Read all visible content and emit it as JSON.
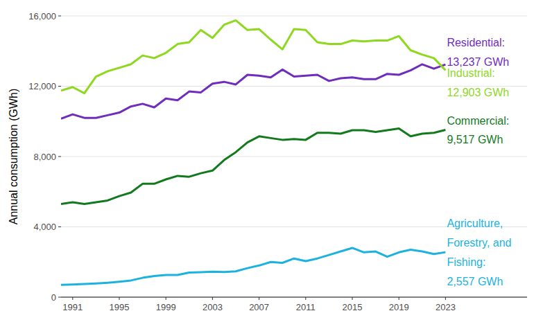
{
  "chart_data": {
    "type": "line",
    "y_label": "Annual consumption (GWh)",
    "x": [
      1990,
      1991,
      1992,
      1993,
      1994,
      1995,
      1996,
      1997,
      1998,
      1999,
      2000,
      2001,
      2002,
      2003,
      2004,
      2005,
      2006,
      2007,
      2008,
      2009,
      2010,
      2011,
      2012,
      2013,
      2014,
      2015,
      2016,
      2017,
      2018,
      2019,
      2020,
      2021,
      2022,
      2023
    ],
    "xlim": [
      1990,
      2030
    ],
    "xticks": [
      1991,
      1995,
      1999,
      2003,
      2007,
      2011,
      2015,
      2019,
      2023
    ],
    "ylim": [
      0,
      16000
    ],
    "yticks": [
      {
        "value": 0,
        "label": "0"
      },
      {
        "value": 4000,
        "label": "4,000"
      },
      {
        "value": 8000,
        "label": "8,000"
      },
      {
        "value": 12000,
        "label": "12,000"
      },
      {
        "value": 16000,
        "label": "16,000"
      }
    ],
    "grid": true,
    "series": [
      {
        "name": "Residential:",
        "color": "#6f2dbd",
        "values": [
          10150,
          10400,
          10200,
          10200,
          10350,
          10500,
          10850,
          11000,
          10800,
          11300,
          11200,
          11700,
          11650,
          12150,
          12250,
          12100,
          12650,
          12600,
          12500,
          12950,
          12550,
          12600,
          12650,
          12300,
          12450,
          12500,
          12400,
          12400,
          12700,
          12650,
          12900,
          13250,
          13000,
          13237
        ],
        "value_labels": [
          null,
          null,
          null,
          null,
          null,
          null,
          null,
          null,
          null,
          null,
          null,
          null,
          null,
          null,
          null,
          null,
          null,
          null,
          null,
          null,
          null,
          null,
          null,
          null,
          null,
          null,
          null,
          null,
          null,
          null,
          null,
          null,
          null,
          "13,237 GWh"
        ]
      },
      {
        "name": "Industrial:",
        "color": "#8ed81e",
        "values": [
          11750,
          11950,
          11600,
          12550,
          12850,
          13050,
          13250,
          13750,
          13600,
          13900,
          14400,
          14500,
          15200,
          14750,
          15500,
          15750,
          15200,
          15250,
          14650,
          14100,
          15250,
          15200,
          14500,
          14400,
          14400,
          14600,
          14550,
          14600,
          14600,
          14850,
          14050,
          13800,
          13600,
          12903
        ],
        "value_labels": [
          null,
          null,
          null,
          null,
          null,
          null,
          null,
          null,
          null,
          null,
          null,
          null,
          null,
          null,
          null,
          null,
          null,
          null,
          null,
          null,
          null,
          null,
          null,
          null,
          null,
          null,
          null,
          null,
          null,
          null,
          null,
          null,
          null,
          "12,903 GWh"
        ]
      },
      {
        "name": "Commercial:",
        "color": "#127a1d",
        "values": [
          5300,
          5400,
          5300,
          5400,
          5500,
          5750,
          5950,
          6450,
          6450,
          6700,
          6900,
          6850,
          7050,
          7200,
          7800,
          8250,
          8800,
          9150,
          9050,
          8950,
          9000,
          8950,
          9350,
          9350,
          9300,
          9500,
          9500,
          9400,
          9500,
          9600,
          9150,
          9300,
          9350,
          9517
        ],
        "value_labels": [
          null,
          null,
          null,
          null,
          null,
          null,
          null,
          null,
          null,
          null,
          null,
          null,
          null,
          null,
          null,
          null,
          null,
          null,
          null,
          null,
          null,
          null,
          null,
          null,
          null,
          null,
          null,
          null,
          null,
          null,
          null,
          null,
          null,
          "9,517 GWh"
        ]
      },
      {
        "name": "Agriculture, Forestry, and Fishing:",
        "color": "#1bb2e0",
        "values": [
          700,
          720,
          750,
          780,
          820,
          880,
          950,
          1100,
          1200,
          1260,
          1260,
          1400,
          1420,
          1450,
          1430,
          1470,
          1650,
          1800,
          2000,
          1950,
          2200,
          2050,
          2200,
          2400,
          2600,
          2800,
          2550,
          2600,
          2300,
          2550,
          2700,
          2600,
          2450,
          2557
        ],
        "value_labels": [
          null,
          null,
          null,
          null,
          null,
          null,
          null,
          null,
          null,
          null,
          null,
          null,
          null,
          null,
          null,
          null,
          null,
          null,
          null,
          null,
          null,
          null,
          null,
          null,
          null,
          null,
          null,
          null,
          null,
          null,
          null,
          null,
          null,
          "2,557 GWh"
        ]
      }
    ]
  }
}
